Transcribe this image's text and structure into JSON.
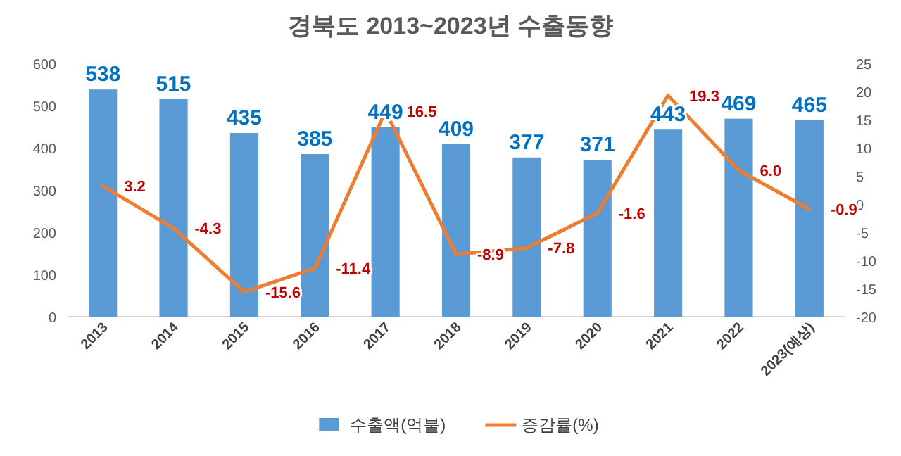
{
  "chart_data": {
    "type": "bar",
    "title": "경북도 2013~2023년 수출동향",
    "categories": [
      "2013",
      "2014",
      "2015",
      "2016",
      "2017",
      "2018",
      "2019",
      "2020",
      "2021",
      "2022",
      "2023(예상)"
    ],
    "series": [
      {
        "name": "수출액(억불)",
        "color": "#5b9bd5",
        "values": [
          538,
          515,
          435,
          385,
          449,
          409,
          377,
          371,
          443,
          469,
          465
        ],
        "value_labels": [
          "538",
          "515",
          "435",
          "385",
          "449",
          "409",
          "377",
          "371",
          "443",
          "469",
          "465"
        ]
      },
      {
        "name": "증감률(%)",
        "type": "line",
        "axis": "y2",
        "color": "#ed7d31",
        "values": [
          3.2,
          -4.3,
          -15.6,
          -11.4,
          16.5,
          -8.9,
          -7.8,
          -1.6,
          19.3,
          6.0,
          -0.9
        ],
        "value_labels": [
          "3.2",
          "-4.3",
          "-15.6",
          "-11.4",
          "16.5",
          "-8.9",
          "-7.8",
          "-1.6",
          "19.3",
          "6.0",
          "-0.9"
        ]
      }
    ],
    "ylim": [
      0,
      600
    ],
    "yticks": [
      0,
      100,
      200,
      300,
      400,
      500,
      600
    ],
    "y2lim": [
      -20,
      25
    ],
    "y2ticks": [
      -20,
      -15,
      -10,
      -5,
      0,
      5,
      10,
      15,
      20,
      25
    ],
    "legend": "bottom"
  }
}
